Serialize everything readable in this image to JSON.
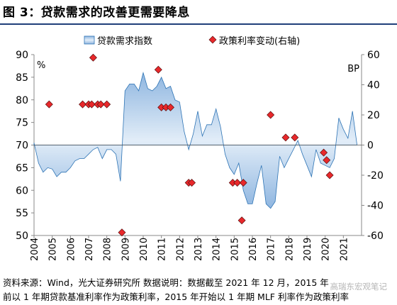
{
  "title": "图 3：贷款需求的改善更需要降息",
  "notes": {
    "line1": "资料来源：Wind，光大证券研究所          数据说明：数据截至 2021 年 12 月，2015 年",
    "line2": "前以 1 年期贷款基准利率作为政策利率，2015 年开始以 1 年期 MLF 利率作为政策利率"
  },
  "watermark": "高瑞东宏观笔记",
  "chart_data": {
    "type": "area",
    "left_unit": "%",
    "right_unit": "BP",
    "ylim_left": [
      50,
      90
    ],
    "yticks_left": [
      50,
      55,
      60,
      65,
      70,
      75,
      80,
      85,
      90
    ],
    "ylim_right": [
      -60,
      60
    ],
    "yticks_right": [
      -60,
      -40,
      -20,
      0,
      20,
      40,
      60
    ],
    "xlim": [
      2004,
      2022
    ],
    "xticks": [
      "2004",
      "2005",
      "2006",
      "2007",
      "2008",
      "2009",
      "2010",
      "2011",
      "2012",
      "2013",
      "2014",
      "2015",
      "2016",
      "2017",
      "2018",
      "2019",
      "2020",
      "2021"
    ],
    "baseline_left": 70,
    "area_color": "#bcd4ec",
    "area_edge_color": "#2e74b5",
    "marker_color": "#e8282b",
    "series": [
      {
        "name": "贷款需求指数",
        "axis": "left",
        "x": [
          2004.0,
          2004.25,
          2004.5,
          2004.75,
          2005.0,
          2005.25,
          2005.5,
          2005.75,
          2006.0,
          2006.25,
          2006.5,
          2006.75,
          2007.0,
          2007.25,
          2007.5,
          2007.75,
          2008.0,
          2008.25,
          2008.5,
          2008.75,
          2009.0,
          2009.25,
          2009.5,
          2009.75,
          2010.0,
          2010.25,
          2010.5,
          2010.75,
          2011.0,
          2011.25,
          2011.5,
          2011.75,
          2012.0,
          2012.25,
          2012.5,
          2012.75,
          2013.0,
          2013.25,
          2013.5,
          2013.75,
          2014.0,
          2014.25,
          2014.5,
          2014.75,
          2015.0,
          2015.25,
          2015.5,
          2015.75,
          2016.0,
          2016.25,
          2016.5,
          2016.75,
          2017.0,
          2017.25,
          2017.5,
          2017.75,
          2018.0,
          2018.25,
          2018.5,
          2018.75,
          2019.0,
          2019.25,
          2019.5,
          2019.75,
          2020.0,
          2020.25,
          2020.5,
          2020.75,
          2021.0,
          2021.25,
          2021.5,
          2021.75
        ],
        "values": [
          70.5,
          66.0,
          64.0,
          65.0,
          64.7,
          63.0,
          64.0,
          64.0,
          65.0,
          66.5,
          67.0,
          67.0,
          68.0,
          69.0,
          69.5,
          67.0,
          69.0,
          69.0,
          68.0,
          62.0,
          82.0,
          83.5,
          83.5,
          82.0,
          86.0,
          82.5,
          82.0,
          83.0,
          85.0,
          82.5,
          83.0,
          80.0,
          79.5,
          73.0,
          69.0,
          72.5,
          77.5,
          72.0,
          74.5,
          74.5,
          78.0,
          74.0,
          68.0,
          65.0,
          63.5,
          66.0,
          60.0,
          57.0,
          57.0,
          61.5,
          65.5,
          57.0,
          56.0,
          57.5,
          67.5,
          65.0,
          67.0,
          69.0,
          71.0,
          68.0,
          65.5,
          63.0,
          69.0,
          66.0,
          65.5,
          65.0,
          67.0,
          76.0,
          73.5,
          71.5,
          77.5,
          70.0
        ]
      },
      {
        "name": "政策利率变动(右轴)",
        "axis": "right",
        "points": [
          [
            2004.83,
            27
          ],
          [
            2006.67,
            27
          ],
          [
            2007.0,
            27
          ],
          [
            2007.17,
            27
          ],
          [
            2007.5,
            27
          ],
          [
            2007.67,
            27
          ],
          [
            2007.25,
            58
          ],
          [
            2008.0,
            27
          ],
          [
            2008.83,
            -58
          ],
          [
            2010.83,
            50
          ],
          [
            2011.0,
            25
          ],
          [
            2011.25,
            25
          ],
          [
            2011.5,
            25
          ],
          [
            2012.5,
            -25
          ],
          [
            2012.67,
            -25
          ],
          [
            2014.92,
            -25
          ],
          [
            2015.17,
            -25
          ],
          [
            2015.42,
            -50
          ],
          [
            2015.5,
            -25
          ],
          [
            2017.0,
            20
          ],
          [
            2017.83,
            5
          ],
          [
            2018.33,
            5
          ],
          [
            2019.92,
            -5
          ],
          [
            2020.08,
            -10
          ],
          [
            2020.25,
            -20
          ]
        ]
      }
    ]
  }
}
